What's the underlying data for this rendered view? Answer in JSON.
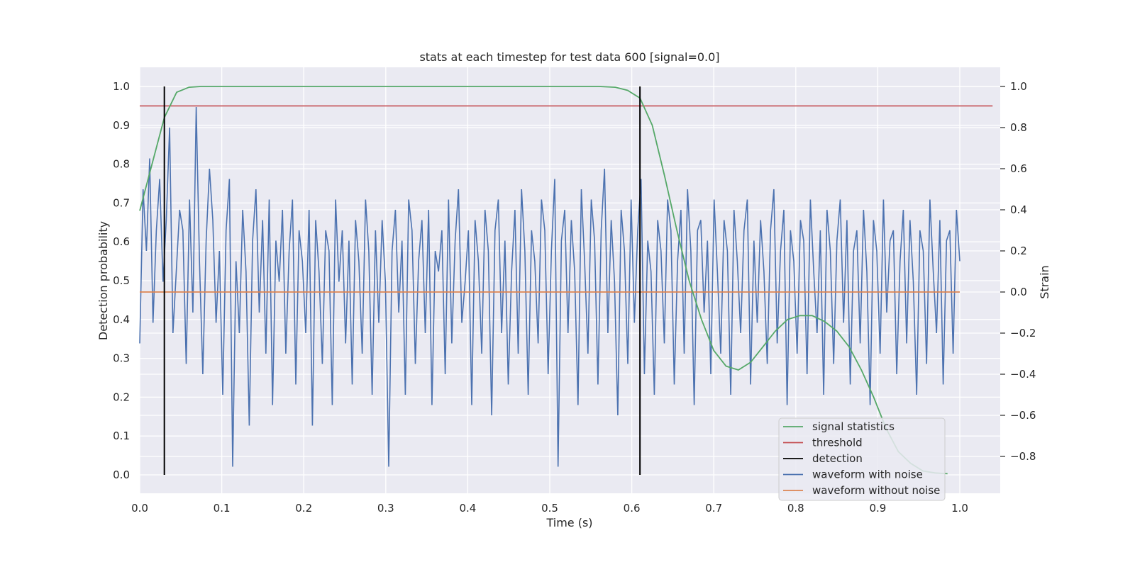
{
  "chart_data": {
    "type": "line",
    "title": "stats at each timestep for test data 600 [signal=0.0]",
    "xlabel": "Time (s)",
    "ylabel": "Detection probability",
    "y2label": "Strain",
    "xlim": [
      0.0,
      1.05
    ],
    "ylim": [
      -0.05,
      1.05
    ],
    "y2lim": [
      -0.97,
      1.07
    ],
    "x_ticks": [
      "0.0",
      "0.1",
      "0.2",
      "0.3",
      "0.4",
      "0.5",
      "0.6",
      "0.7",
      "0.8",
      "0.9",
      "1.0"
    ],
    "y_ticks": [
      "0.0",
      "0.1",
      "0.2",
      "0.3",
      "0.4",
      "0.5",
      "0.6",
      "0.7",
      "0.8",
      "0.9",
      "1.0"
    ],
    "y2_ticks": [
      "−0.8",
      "−0.6",
      "−0.4",
      "−0.2",
      "0.0",
      "0.2",
      "0.4",
      "0.6",
      "0.8",
      "1.0"
    ],
    "grid": true,
    "legend_position": "lower-right",
    "series": [
      {
        "name": "signal statistics",
        "axis": "left",
        "color": "#55a868",
        "x": [
          0.0,
          0.015,
          0.03,
          0.045,
          0.06,
          0.075,
          0.1,
          0.2,
          0.3,
          0.4,
          0.5,
          0.56,
          0.58,
          0.595,
          0.61,
          0.625,
          0.64,
          0.655,
          0.67,
          0.685,
          0.7,
          0.715,
          0.73,
          0.745,
          0.76,
          0.775,
          0.79,
          0.805,
          0.82,
          0.835,
          0.85,
          0.865,
          0.88,
          0.895,
          0.91,
          0.925,
          0.94,
          0.955,
          0.97,
          0.985
        ],
        "values": [
          0.68,
          0.8,
          0.92,
          0.985,
          0.998,
          1.0,
          1.0,
          1.0,
          1.0,
          1.0,
          1.0,
          1.0,
          0.998,
          0.99,
          0.97,
          0.9,
          0.77,
          0.63,
          0.5,
          0.4,
          0.32,
          0.28,
          0.27,
          0.29,
          0.33,
          0.37,
          0.4,
          0.41,
          0.41,
          0.395,
          0.37,
          0.33,
          0.27,
          0.2,
          0.12,
          0.06,
          0.03,
          0.01,
          0.005,
          0.003
        ]
      },
      {
        "name": "threshold",
        "axis": "left",
        "color": "#c44e52",
        "x": [
          0.0,
          1.04
        ],
        "values": [
          0.95,
          0.95
        ]
      },
      {
        "name": "detection",
        "axis": "left",
        "color": "#000000",
        "vlines": [
          0.03,
          0.61
        ],
        "range": [
          0.0,
          1.0
        ]
      },
      {
        "name": "waveform with noise",
        "axis": "right",
        "color": "#4c72b0",
        "x_start": 0.0,
        "x_end": 1.0,
        "values": [
          -0.25,
          0.5,
          0.2,
          0.65,
          -0.15,
          0.3,
          0.55,
          0.05,
          0.35,
          0.8,
          -0.2,
          0.1,
          0.4,
          0.3,
          -0.35,
          0.45,
          -0.1,
          0.9,
          0.15,
          -0.4,
          0.25,
          0.6,
          0.35,
          -0.15,
          0.2,
          -0.5,
          0.3,
          0.55,
          -0.85,
          0.15,
          -0.2,
          0.4,
          0.1,
          -0.65,
          0.25,
          0.5,
          -0.1,
          0.35,
          -0.3,
          0.45,
          -0.55,
          0.25,
          0.05,
          0.4,
          -0.3,
          0.2,
          0.45,
          -0.45,
          0.3,
          0.15,
          -0.2,
          0.4,
          -0.65,
          0.35,
          0.1,
          -0.35,
          0.3,
          0.2,
          -0.55,
          0.45,
          0.05,
          0.3,
          -0.25,
          0.25,
          -0.45,
          0.35,
          0.15,
          -0.3,
          0.45,
          0.2,
          -0.5,
          0.3,
          -0.15,
          0.35,
          0.05,
          -0.85,
          0.2,
          0.4,
          -0.1,
          0.25,
          -0.5,
          0.45,
          0.3,
          -0.35,
          0.15,
          0.35,
          -0.2,
          0.4,
          -0.55,
          0.2,
          0.1,
          0.3,
          -0.4,
          0.45,
          -0.25,
          0.25,
          0.5,
          -0.15,
          0.05,
          0.3,
          -0.55,
          0.35,
          0.15,
          -0.3,
          0.4,
          0.2,
          -0.6,
          0.3,
          0.45,
          -0.2,
          0.25,
          -0.45,
          0.1,
          0.4,
          -0.3,
          0.5,
          0.2,
          -0.5,
          0.3,
          0.15,
          -0.25,
          0.45,
          0.3,
          -0.4,
          0.2,
          0.55,
          -0.85,
          0.25,
          0.4,
          -0.2,
          0.35,
          0.1,
          -0.55,
          0.5,
          0.15,
          -0.3,
          0.45,
          0.25,
          -0.45,
          0.3,
          0.6,
          -0.2,
          0.35,
          0.05,
          -0.6,
          0.4,
          0.2,
          -0.35,
          0.45,
          -0.15,
          0.3,
          0.55,
          -0.4,
          0.25,
          0.1,
          -0.5,
          0.35,
          0.2,
          -0.25,
          0.45,
          0.3,
          -0.45,
          0.15,
          0.4,
          -0.3,
          0.5,
          0.2,
          -0.55,
          0.3,
          0.35,
          -0.1,
          0.25,
          -0.4,
          0.45,
          0.1,
          -0.3,
          0.35,
          0.2,
          -0.5,
          0.4,
          0.15,
          -0.2,
          0.3,
          0.45,
          -0.45,
          0.25,
          -0.15,
          0.35,
          0.1,
          -0.35,
          0.3,
          0.5,
          -0.25,
          0.2,
          0.4,
          -0.55,
          0.3,
          0.15,
          -0.3,
          0.35,
          0.25,
          -0.4,
          0.45,
          0.1,
          -0.2,
          0.3,
          -0.5,
          0.4,
          0.2,
          -0.35,
          0.25,
          0.45,
          -0.15,
          0.35,
          -0.45,
          0.2,
          0.3,
          -0.25,
          0.4,
          0.1,
          -0.55,
          0.35,
          0.2,
          -0.3,
          0.45,
          -0.1,
          0.25,
          0.3,
          -0.4,
          0.15,
          0.4,
          -0.25,
          0.35,
          0.05,
          -0.5,
          0.3,
          0.2,
          -0.35,
          0.45,
          0.1,
          -0.2,
          0.35,
          -0.45,
          0.25,
          0.3,
          -0.3,
          0.4,
          0.15
        ],
        "extra_points_note": ""
      },
      {
        "name": "waveform without noise",
        "axis": "right",
        "color": "#dd8452",
        "x": [
          0.0,
          1.0
        ],
        "values": [
          0.0,
          0.0
        ]
      }
    ]
  }
}
